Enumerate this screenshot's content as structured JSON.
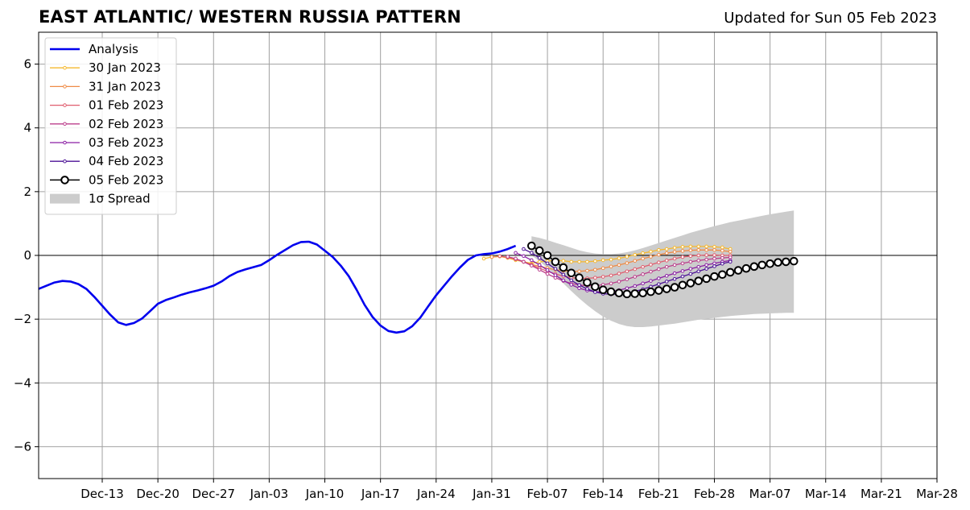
{
  "chart_data": {
    "type": "line",
    "title": "EAST ATLANTIC/ WESTERN RUSSIA PATTERN",
    "subtitle": "Updated for Sun 05 Feb 2023",
    "xlabel": "",
    "ylabel": "",
    "ylim": [
      -7,
      7
    ],
    "xlim": [
      "2022-12-05",
      "2023-03-28"
    ],
    "y_ticks": [
      -6,
      -4,
      -2,
      0,
      2,
      4,
      6
    ],
    "y_tick_labels": [
      "−6",
      "−4",
      "−2",
      "0",
      "2",
      "4",
      "6"
    ],
    "x_ticks": [
      "2022-12-13",
      "2022-12-20",
      "2022-12-27",
      "2023-01-03",
      "2023-01-10",
      "2023-01-17",
      "2023-01-24",
      "2023-01-31",
      "2023-02-07",
      "2023-02-14",
      "2023-02-21",
      "2023-02-28",
      "2023-03-07",
      "2023-03-14",
      "2023-03-21",
      "2023-03-28"
    ],
    "x_tick_labels": [
      "Dec-13",
      "Dec-20",
      "Dec-27",
      "Jan-03",
      "Jan-10",
      "Jan-17",
      "Jan-24",
      "Jan-31",
      "Feb-07",
      "Feb-14",
      "Feb-21",
      "Feb-28",
      "Mar-07",
      "Mar-14",
      "Mar-21",
      "Mar-28"
    ],
    "grid": true,
    "zero_line": true,
    "legend_position": "top-left",
    "analysis": {
      "name": "Analysis",
      "color": "#0000ee",
      "start": "2022-12-05",
      "values": [
        -1.05,
        -0.95,
        -0.85,
        -0.8,
        -0.82,
        -0.9,
        -1.05,
        -1.3,
        -1.58,
        -1.86,
        -2.1,
        -2.18,
        -2.12,
        -1.98,
        -1.75,
        -1.52,
        -1.4,
        -1.32,
        -1.23,
        -1.16,
        -1.1,
        -1.03,
        -0.95,
        -0.82,
        -0.65,
        -0.52,
        -0.44,
        -0.37,
        -0.3,
        -0.15,
        0.02,
        0.17,
        0.32,
        0.42,
        0.43,
        0.34,
        0.15,
        -0.05,
        -0.32,
        -0.65,
        -1.08,
        -1.55,
        -1.93,
        -2.2,
        -2.37,
        -2.42,
        -2.38,
        -2.22,
        -1.95,
        -1.6,
        -1.25,
        -0.95,
        -0.65,
        -0.38,
        -0.14,
        0.0,
        0.04,
        0.06,
        0.12,
        0.2,
        0.3
      ]
    },
    "forecasts": [
      {
        "name": "30 Jan 2023",
        "color": "#f5b82e",
        "start": "2023-01-30",
        "values": [
          -0.1,
          -0.05,
          -0.03,
          -0.08,
          -0.15,
          -0.2,
          -0.25,
          -0.2,
          -0.18,
          -0.15,
          -0.17,
          -0.2,
          -0.2,
          -0.2,
          -0.18,
          -0.15,
          -0.13,
          -0.09,
          -0.04,
          0.02,
          0.07,
          0.12,
          0.17,
          0.2,
          0.24,
          0.27,
          0.28,
          0.28,
          0.28,
          0.27,
          0.25,
          0.2
        ]
      },
      {
        "name": "31 Jan 2023",
        "color": "#ef8c47",
        "start": "2023-01-31",
        "values": [
          -0.05,
          -0.03,
          -0.06,
          -0.12,
          -0.2,
          -0.28,
          -0.34,
          -0.4,
          -0.45,
          -0.48,
          -0.5,
          -0.5,
          -0.48,
          -0.45,
          -0.4,
          -0.35,
          -0.3,
          -0.24,
          -0.17,
          -0.1,
          -0.04,
          0.02,
          0.07,
          0.11,
          0.14,
          0.16,
          0.17,
          0.17,
          0.17,
          0.15,
          0.12
        ]
      },
      {
        "name": "01 Feb 2023",
        "color": "#e05d6e",
        "start": "2023-02-01",
        "values": [
          -0.02,
          -0.06,
          -0.12,
          -0.2,
          -0.3,
          -0.4,
          -0.5,
          -0.58,
          -0.65,
          -0.7,
          -0.72,
          -0.72,
          -0.7,
          -0.67,
          -0.63,
          -0.57,
          -0.5,
          -0.43,
          -0.36,
          -0.29,
          -0.22,
          -0.16,
          -0.1,
          -0.05,
          -0.02,
          0.0,
          0.01,
          0.01,
          0.0,
          0.0
        ]
      },
      {
        "name": "02 Feb 2023",
        "color": "#bb3f8c",
        "start": "2023-02-02",
        "values": [
          -0.04,
          -0.1,
          -0.2,
          -0.32,
          -0.45,
          -0.58,
          -0.7,
          -0.8,
          -0.88,
          -0.93,
          -0.95,
          -0.95,
          -0.92,
          -0.88,
          -0.82,
          -0.75,
          -0.67,
          -0.59,
          -0.51,
          -0.43,
          -0.36,
          -0.3,
          -0.25,
          -0.2,
          -0.16,
          -0.13,
          -0.1,
          -0.08,
          -0.06
        ]
      },
      {
        "name": "03 Feb 2023",
        "color": "#8a1fa3",
        "start": "2023-02-03",
        "values": [
          0.08,
          -0.02,
          -0.15,
          -0.3,
          -0.46,
          -0.62,
          -0.78,
          -0.92,
          -1.03,
          -1.1,
          -1.14,
          -1.15,
          -1.13,
          -1.09,
          -1.03,
          -0.96,
          -0.88,
          -0.8,
          -0.72,
          -0.64,
          -0.56,
          -0.49,
          -0.42,
          -0.36,
          -0.3,
          -0.25,
          -0.2,
          -0.16
        ]
      },
      {
        "name": "04 Feb 2023",
        "color": "#4b1196",
        "start": "2023-02-04",
        "values": [
          0.2,
          0.08,
          -0.08,
          -0.25,
          -0.42,
          -0.6,
          -0.78,
          -0.93,
          -1.05,
          -1.15,
          -1.2,
          -1.22,
          -1.21,
          -1.18,
          -1.13,
          -1.06,
          -0.98,
          -0.9,
          -0.82,
          -0.74,
          -0.66,
          -0.58,
          -0.5,
          -0.42,
          -0.34,
          -0.26,
          -0.2
        ]
      }
    ],
    "current_forecast": {
      "name": "05 Feb 2023",
      "color": "#000000",
      "start": "2023-02-05",
      "values": [
        0.3,
        0.15,
        0.0,
        -0.2,
        -0.38,
        -0.55,
        -0.7,
        -0.85,
        -0.98,
        -1.08,
        -1.14,
        -1.18,
        -1.21,
        -1.2,
        -1.18,
        -1.14,
        -1.1,
        -1.05,
        -1.0,
        -0.93,
        -0.87,
        -0.8,
        -0.73,
        -0.66,
        -0.6,
        -0.53,
        -0.47,
        -0.41,
        -0.35,
        -0.3,
        -0.26,
        -0.22,
        -0.2,
        -0.18
      ]
    },
    "spread": {
      "name": "1σ Spread",
      "color": "#cccccc",
      "start": "2023-02-05",
      "upper": [
        0.6,
        0.55,
        0.48,
        0.4,
        0.32,
        0.24,
        0.16,
        0.1,
        0.06,
        0.04,
        0.04,
        0.06,
        0.1,
        0.16,
        0.23,
        0.31,
        0.39,
        0.47,
        0.55,
        0.63,
        0.71,
        0.78,
        0.85,
        0.92,
        0.98,
        1.04,
        1.09,
        1.14,
        1.19,
        1.24,
        1.29,
        1.33,
        1.37,
        1.41
      ],
      "lower": [
        0.0,
        -0.18,
        -0.4,
        -0.62,
        -0.88,
        -1.12,
        -1.35,
        -1.56,
        -1.75,
        -1.92,
        -2.05,
        -2.15,
        -2.22,
        -2.25,
        -2.25,
        -2.23,
        -2.2,
        -2.17,
        -2.14,
        -2.1,
        -2.06,
        -2.02,
        -1.99,
        -1.96,
        -1.93,
        -1.9,
        -1.88,
        -1.86,
        -1.84,
        -1.83,
        -1.82,
        -1.81,
        -1.8,
        -1.8
      ]
    }
  }
}
